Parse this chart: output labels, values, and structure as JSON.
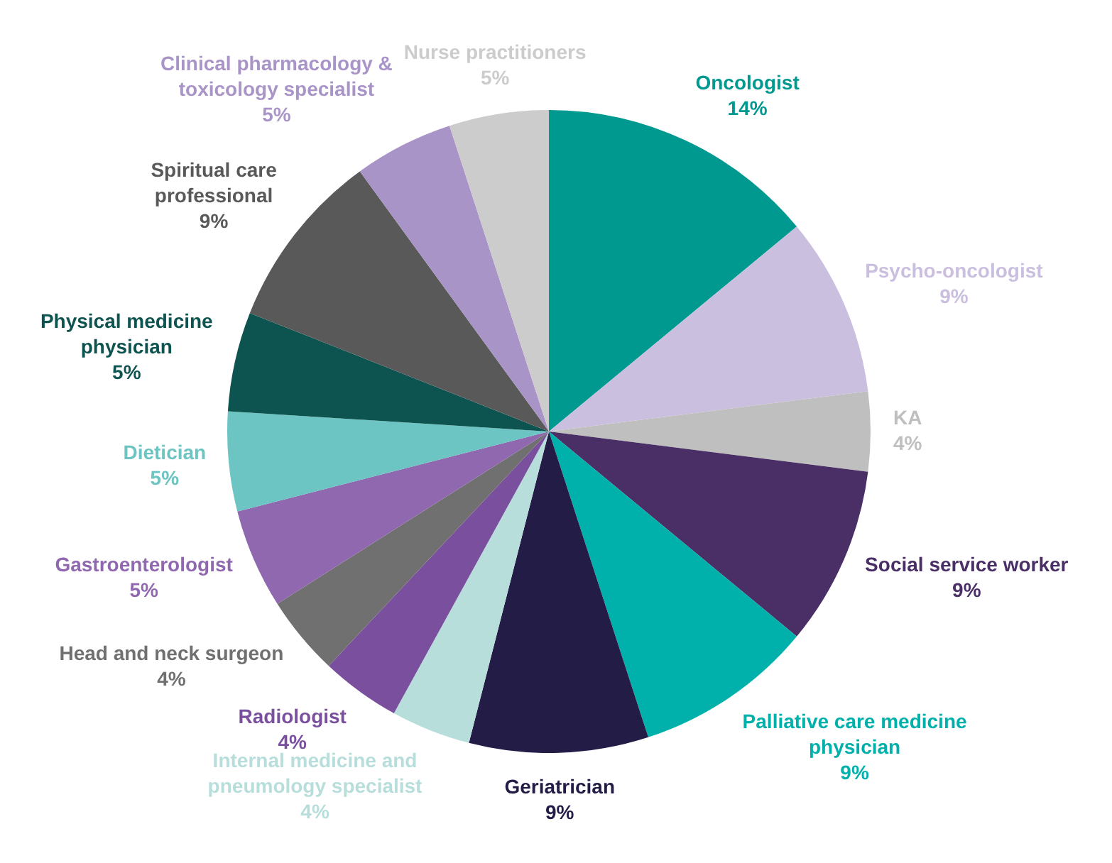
{
  "chart_data": {
    "type": "pie",
    "categories": [
      "Oncologist",
      "Psycho-oncologist",
      "KA",
      "Social service worker",
      "Palliative care medicine physician",
      "Geriatrician",
      "Internal medicine and pneumology specialist",
      "Radiologist",
      "Head and neck surgeon",
      "Gastroenterologist",
      "Dietician",
      "Physical medicine physician",
      "Spiritual care professional",
      "Clinical pharmacology & toxicology specialist",
      "Nurse practitioners"
    ],
    "values": [
      14,
      9,
      4,
      9,
      9,
      9,
      4,
      4,
      4,
      5,
      5,
      5,
      9,
      5,
      5
    ],
    "value_labels": [
      "14%",
      "9%",
      "4%",
      "9%",
      "9%",
      "9%",
      "4%",
      "4%",
      "4%",
      "5%",
      "5%",
      "5%",
      "9%",
      "5%",
      "5%"
    ],
    "colors": [
      "#009990",
      "#cbbfe0",
      "#c0bfbf",
      "#4a2f66",
      "#00b0aa",
      "#231c47",
      "#b8dedc",
      "#7a4f9e",
      "#707070",
      "#9068b0",
      "#6cc5c2",
      "#0d5450",
      "#595959",
      "#a994c8",
      "#cccccc"
    ],
    "legend": false
  }
}
